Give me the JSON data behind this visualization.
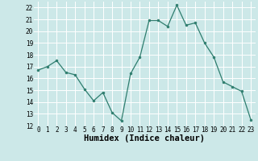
{
  "x": [
    0,
    1,
    2,
    3,
    4,
    5,
    6,
    7,
    8,
    9,
    10,
    11,
    12,
    13,
    14,
    15,
    16,
    17,
    18,
    19,
    20,
    21,
    22,
    23
  ],
  "y": [
    16.7,
    17.0,
    17.5,
    16.5,
    16.3,
    15.1,
    14.1,
    14.8,
    13.1,
    12.4,
    16.4,
    17.8,
    20.9,
    20.9,
    20.4,
    22.2,
    20.5,
    20.7,
    19.0,
    17.8,
    15.7,
    15.3,
    14.9,
    12.5
  ],
  "xlabel": "Humidex (Indice chaleur)",
  "ylim": [
    12,
    22.5
  ],
  "xlim": [
    -0.5,
    23.5
  ],
  "yticks": [
    12,
    13,
    14,
    15,
    16,
    17,
    18,
    19,
    20,
    21,
    22
  ],
  "xticks": [
    0,
    1,
    2,
    3,
    4,
    5,
    6,
    7,
    8,
    9,
    10,
    11,
    12,
    13,
    14,
    15,
    16,
    17,
    18,
    19,
    20,
    21,
    22,
    23
  ],
  "line_color": "#2e7d6e",
  "marker_color": "#2e7d6e",
  "bg_color": "#cce8e8",
  "grid_color": "#ffffff",
  "tick_fontsize": 5.5,
  "xlabel_fontsize": 7.5
}
